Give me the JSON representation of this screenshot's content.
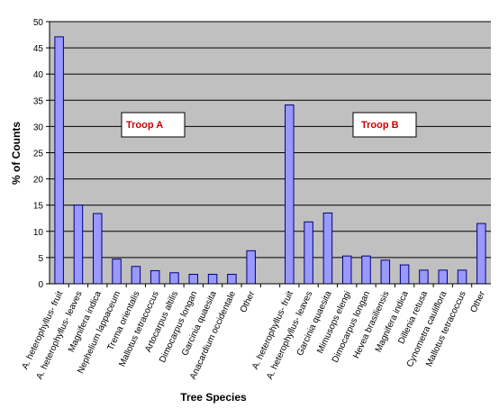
{
  "chart_data": {
    "type": "bar",
    "xlabel": "Tree Species",
    "ylabel": "% of Counts",
    "ylim": [
      0,
      50
    ],
    "yticks": [
      0,
      5,
      10,
      15,
      20,
      25,
      30,
      35,
      40,
      45,
      50
    ],
    "grid": true,
    "plot_background": "#c0c0c0",
    "bar_color": "#9999ff",
    "bar_edge_color": "#000080",
    "annotation_color": "#cc0000",
    "groups": [
      {
        "name": "Troop A",
        "categories": [
          "A. heterophyllus- fruit",
          "A. heterophyllus- leaves",
          "Magnifera indica",
          "Nephelium lappaceum",
          "Trema orientalis",
          "Mallotus tetracoccus",
          "Artocarpus altilis",
          "Dimocarpus longan",
          "Garcinia quaesita",
          "Anacardium occidentale",
          "Other"
        ],
        "values": [
          47.1,
          15.0,
          13.4,
          4.7,
          3.3,
          2.5,
          2.1,
          1.8,
          1.8,
          1.8,
          6.3
        ]
      },
      {
        "name": "Troop B",
        "categories": [
          "A. heterophyllus- fruit",
          "A. heterophyllus- leaves",
          "Garcinia quaesita",
          "Mimusops elengi",
          "Dimocarpus longan",
          "Hevea brasiliensis",
          "Magnifera indica",
          "Dillenia retusa",
          "Cynometra cauliflora",
          "Mallotus tetracoccus",
          "Other"
        ],
        "values": [
          34.1,
          11.8,
          13.5,
          5.3,
          5.3,
          4.5,
          3.6,
          2.6,
          2.6,
          2.6,
          11.5
        ]
      }
    ]
  }
}
